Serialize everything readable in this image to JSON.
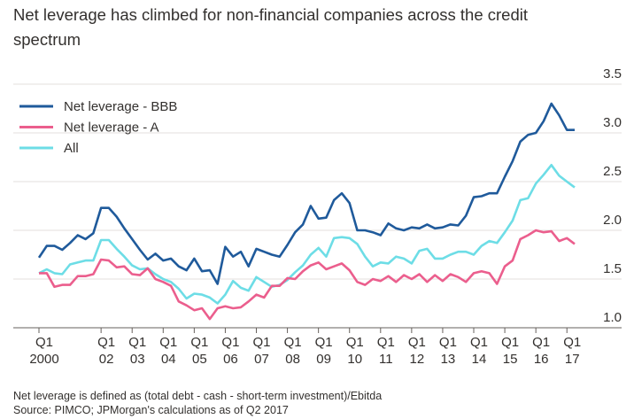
{
  "chart_data": {
    "type": "line",
    "title": "Net leverage has climbed for non-financial companies across the credit spectrum",
    "notes": [
      "Net leverage is defined as (total debt - cash - short-term investment)/Ebitda",
      "Source: PIMCO; JPMorgan's calculations as of Q2 2017"
    ],
    "x": [
      2000,
      2000.25,
      2000.5,
      2000.75,
      2001,
      2001.25,
      2001.5,
      2001.75,
      2002,
      2002.25,
      2002.5,
      2002.75,
      2003,
      2003.25,
      2003.5,
      2003.75,
      2004,
      2004.25,
      2004.5,
      2004.75,
      2005,
      2005.25,
      2005.5,
      2005.75,
      2006,
      2006.25,
      2006.5,
      2006.75,
      2007,
      2007.25,
      2007.5,
      2007.75,
      2008,
      2008.25,
      2008.5,
      2008.75,
      2009,
      2009.25,
      2009.5,
      2009.75,
      2010,
      2010.25,
      2010.5,
      2010.75,
      2011,
      2011.25,
      2011.5,
      2011.75,
      2012,
      2012.25,
      2012.5,
      2012.75,
      2013,
      2013.25,
      2013.5,
      2013.75,
      2014,
      2014.25,
      2014.5,
      2014.75,
      2015,
      2015.25,
      2015.5,
      2015.75,
      2016,
      2016.25,
      2016.5,
      2016.75,
      2017,
      2017.25
    ],
    "series": [
      {
        "name": "Net leverage - BBB",
        "color": "#1f5a9b",
        "values": [
          1.72,
          1.84,
          1.84,
          1.8,
          1.87,
          1.95,
          1.91,
          1.97,
          2.23,
          2.23,
          2.14,
          2.02,
          1.91,
          1.8,
          1.7,
          1.76,
          1.69,
          1.71,
          1.63,
          1.59,
          1.71,
          1.58,
          1.59,
          1.45,
          1.83,
          1.73,
          1.78,
          1.63,
          1.81,
          1.78,
          1.75,
          1.73,
          1.85,
          1.98,
          2.06,
          2.25,
          2.12,
          2.13,
          2.31,
          2.38,
          2.28,
          2.0,
          2.0,
          1.98,
          1.95,
          2.07,
          2.02,
          2.0,
          2.03,
          2.02,
          2.06,
          2.02,
          2.03,
          2.06,
          2.05,
          2.15,
          2.34,
          2.35,
          2.38,
          2.38,
          2.55,
          2.71,
          2.91,
          2.98,
          3.0,
          3.12,
          3.3,
          3.18,
          3.03,
          3.03
        ]
      },
      {
        "name": "Net leverage - A",
        "color": "#eb5e8d",
        "values": [
          1.56,
          1.56,
          1.42,
          1.44,
          1.44,
          1.53,
          1.53,
          1.55,
          1.7,
          1.69,
          1.62,
          1.63,
          1.55,
          1.54,
          1.61,
          1.5,
          1.47,
          1.43,
          1.27,
          1.23,
          1.18,
          1.2,
          1.09,
          1.2,
          1.22,
          1.2,
          1.21,
          1.27,
          1.34,
          1.31,
          1.43,
          1.43,
          1.51,
          1.5,
          1.58,
          1.64,
          1.67,
          1.6,
          1.63,
          1.66,
          1.59,
          1.47,
          1.44,
          1.5,
          1.48,
          1.53,
          1.47,
          1.54,
          1.5,
          1.55,
          1.47,
          1.54,
          1.48,
          1.55,
          1.52,
          1.47,
          1.56,
          1.58,
          1.56,
          1.45,
          1.63,
          1.69,
          1.91,
          1.95,
          2.0,
          1.98,
          1.99,
          1.89,
          1.92,
          1.86
        ]
      },
      {
        "name": "All",
        "color": "#6ddde6",
        "values": [
          1.56,
          1.6,
          1.56,
          1.55,
          1.65,
          1.67,
          1.69,
          1.69,
          1.9,
          1.9,
          1.81,
          1.73,
          1.64,
          1.6,
          1.61,
          1.55,
          1.5,
          1.47,
          1.4,
          1.3,
          1.35,
          1.34,
          1.31,
          1.25,
          1.34,
          1.48,
          1.41,
          1.38,
          1.52,
          1.47,
          1.42,
          1.44,
          1.49,
          1.57,
          1.64,
          1.75,
          1.82,
          1.73,
          1.92,
          1.93,
          1.92,
          1.86,
          1.73,
          1.63,
          1.67,
          1.66,
          1.73,
          1.71,
          1.66,
          1.79,
          1.81,
          1.71,
          1.71,
          1.75,
          1.78,
          1.78,
          1.75,
          1.84,
          1.89,
          1.87,
          1.98,
          2.1,
          2.31,
          2.33,
          2.48,
          2.57,
          2.67,
          2.56,
          2.5,
          2.44
        ]
      }
    ],
    "xlim": [
      2000,
      2017.25
    ],
    "xticks": [
      {
        "value": 2000,
        "label": "Q1\n2000"
      },
      {
        "value": 2002,
        "label": "Q1\n02"
      },
      {
        "value": 2003,
        "label": "Q1\n03"
      },
      {
        "value": 2004,
        "label": "Q1\n04"
      },
      {
        "value": 2005,
        "label": "Q1\n05"
      },
      {
        "value": 2006,
        "label": "Q1\n06"
      },
      {
        "value": 2007,
        "label": "Q1\n07"
      },
      {
        "value": 2008,
        "label": "Q1\n08"
      },
      {
        "value": 2009,
        "label": "Q1\n09"
      },
      {
        "value": 2010,
        "label": "Q1\n10"
      },
      {
        "value": 2011,
        "label": "Q1\n11"
      },
      {
        "value": 2012,
        "label": "Q1\n12"
      },
      {
        "value": 2013,
        "label": "Q1\n13"
      },
      {
        "value": 2014,
        "label": "Q1\n14"
      },
      {
        "value": 2015,
        "label": "Q1\n15"
      },
      {
        "value": 2016,
        "label": "Q1\n16"
      },
      {
        "value": 2017,
        "label": "Q1\n17"
      }
    ],
    "ylim": [
      1,
      3.5
    ],
    "yticks": [
      {
        "value": 1,
        "label": "1.0"
      },
      1.5,
      {
        "value": 2,
        "label": "2.0"
      },
      2.5,
      {
        "value": 3,
        "label": "3.0"
      },
      3.5
    ],
    "grid": true,
    "legend": "top-left"
  }
}
